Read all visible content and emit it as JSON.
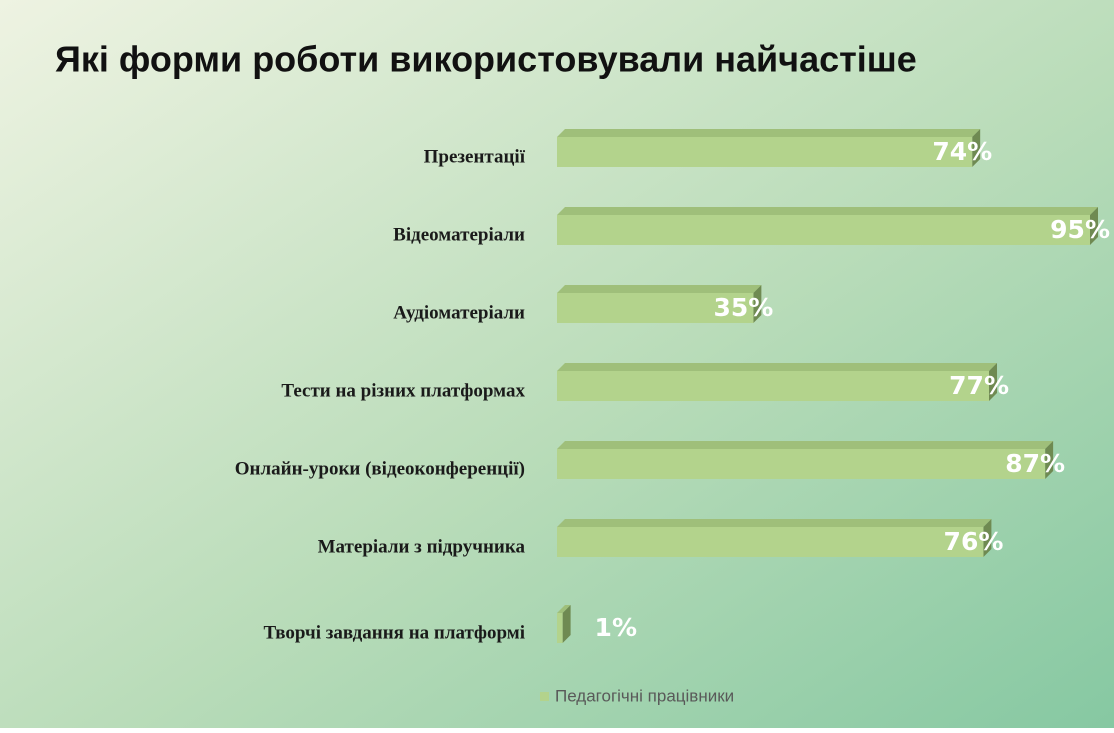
{
  "chart_data": {
    "type": "bar",
    "orientation": "horizontal",
    "title": "Які форми роботи використовували найчастіше",
    "categories": [
      "Презентації",
      "Відеоматеріали",
      "Аудіоматеріали",
      "Тести на різних платформах",
      "Онлайн-уроки (відеоконференції)",
      "Матеріали з підручника",
      "Творчі завдання на платформі"
    ],
    "series": [
      {
        "name": "Педагогічні працівники",
        "color": "#b3d38c",
        "values": [
          74,
          95,
          35,
          77,
          87,
          76,
          1
        ],
        "value_labels": [
          "74%",
          "95%",
          "35%",
          "77%",
          "87%",
          "76%",
          "1%"
        ]
      }
    ],
    "legend": "bottom"
  }
}
